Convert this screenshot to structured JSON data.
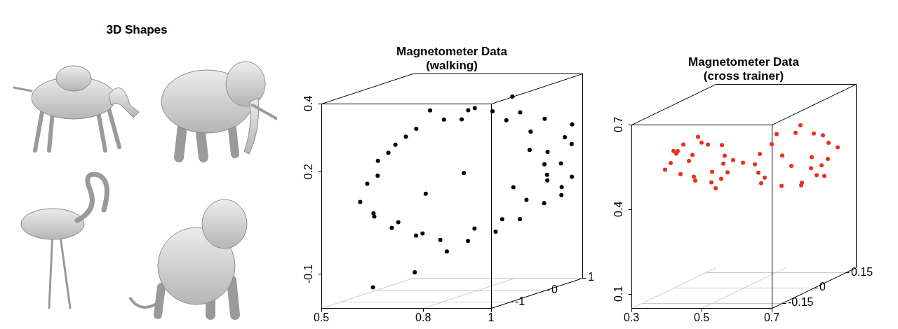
{
  "figure": {
    "panels": [
      {
        "title": "3D Shapes"
      }
    ]
  },
  "chart_data": [
    {
      "type": "scatter3d",
      "title": "Magnetometer Data (walking)",
      "color": "#000000",
      "xlim": [
        0.5,
        1
      ],
      "xticks": [
        0.5,
        0.8,
        1
      ],
      "ylim": [
        -1.5,
        1
      ],
      "yticks": [
        -1,
        0,
        1
      ],
      "zlim": [
        -0.2,
        0.4
      ],
      "zticks": [
        -0.1,
        0.2,
        0.4
      ],
      "grid": true,
      "x": [
        0.95,
        0.93,
        0.97,
        0.9,
        0.86,
        0.8,
        0.75,
        0.7,
        0.64,
        0.6,
        0.57,
        0.56,
        0.55,
        0.57,
        0.6,
        0.65,
        0.7,
        0.76,
        0.82,
        0.87,
        0.92,
        0.95,
        0.98,
        0.96,
        0.92,
        0.98,
        0.88,
        0.83,
        0.78,
        0.72,
        0.67,
        0.62,
        0.59,
        0.58,
        0.6,
        0.63,
        0.68,
        0.73,
        0.79,
        0.85,
        0.9,
        0.94,
        0.99,
        0.97,
        0.91,
        0.84,
        0.78,
        0.7,
        0.62,
        0.7,
        0.88
      ],
      "y": [
        0.5,
        0.7,
        0.8,
        0.9,
        0.6,
        0.4,
        0.2,
        0,
        -0.2,
        -0.4,
        -0.6,
        -0.8,
        -0.9,
        -0.7,
        -0.5,
        -0.3,
        -0.1,
        0.1,
        0.3,
        0.5,
        0.7,
        0.9,
        0.6,
        0.8,
        0.3,
        0.9,
        0.7,
        0.5,
        0.1,
        0.3,
        -0.1,
        -0.3,
        -0.5,
        -0.7,
        -1,
        -0.6,
        -0.4,
        -0.2,
        0,
        0.2,
        0.4,
        0.6,
        0.8,
        1,
        0.8,
        0.6,
        -0.2,
        -0.5,
        -1.2,
        -0.8,
        0.2
      ],
      "z": [
        0.12,
        0.18,
        0.22,
        0.27,
        0.3,
        0.31,
        0.32,
        0.3,
        0.28,
        0.24,
        0.2,
        0.14,
        0.09,
        0.04,
        0,
        -0.03,
        -0.05,
        -0.06,
        -0.04,
        -0.01,
        0.03,
        0.07,
        0.15,
        0.05,
        0.2,
        0.1,
        0.24,
        0.28,
        0.33,
        0.29,
        0.33,
        0.26,
        0.22,
        0.16,
        0.06,
        0.02,
        -0.02,
        -0.08,
        -0.02,
        0,
        0.05,
        0.1,
        0.2,
        0.25,
        0.14,
        0.08,
        0.15,
        0.1,
        -0.15,
        -0.12,
        0.36
      ]
    },
    {
      "type": "scatter3d",
      "title": "Magnetometer Data (cross trainer)",
      "color": "#e8321e",
      "xlim": [
        0.3,
        0.7
      ],
      "xticks": [
        0.3,
        0.5,
        0.7
      ],
      "ylim": [
        -0.2,
        0.2
      ],
      "yticks": [
        -0.15,
        0,
        0.15
      ],
      "zlim": [
        0.05,
        0.7
      ],
      "zticks": [
        0.1,
        0.4,
        0.7
      ],
      "grid": true,
      "x": [
        0.5,
        0.48,
        0.44,
        0.4,
        0.36,
        0.34,
        0.35,
        0.38,
        0.42,
        0.46,
        0.49,
        0.5,
        0.47,
        0.43,
        0.39,
        0.35,
        0.33,
        0.37,
        0.41,
        0.45,
        0.51,
        0.42,
        0.38,
        0.46,
        0.52,
        0.55,
        0.6,
        0.64,
        0.67,
        0.68,
        0.66,
        0.63,
        0.59,
        0.55,
        0.53,
        0.58,
        0.57,
        0.62,
        0.66,
        0.69,
        0.65,
        0.61,
        0.56,
        0.6,
        0.64,
        0.54,
        0.67,
        0.62
      ],
      "y": [
        -0.05,
        -0.07,
        -0.1,
        -0.12,
        -0.1,
        -0.08,
        -0.05,
        -0.03,
        -0.02,
        -0.04,
        -0.06,
        -0.09,
        -0.12,
        -0.1,
        -0.13,
        -0.07,
        -0.09,
        -0.02,
        0,
        -0.05,
        -0.02,
        -0.11,
        -0.06,
        -0.03,
        0.02,
        0.05,
        0.08,
        0.1,
        0.12,
        0.1,
        0.08,
        0.06,
        0.03,
        0,
        0.02,
        0.05,
        0.04,
        0.07,
        0.11,
        0.13,
        0.12,
        0.09,
        0,
        0.06,
        0.09,
        0.01,
        0.1,
        0.12
      ],
      "z": [
        0.52,
        0.58,
        0.6,
        0.6,
        0.57,
        0.52,
        0.47,
        0.44,
        0.43,
        0.45,
        0.48,
        0.55,
        0.6,
        0.62,
        0.58,
        0.55,
        0.5,
        0.45,
        0.46,
        0.42,
        0.5,
        0.56,
        0.52,
        0.5,
        0.48,
        0.54,
        0.57,
        0.56,
        0.52,
        0.47,
        0.42,
        0.4,
        0.4,
        0.42,
        0.45,
        0.5,
        0.58,
        0.6,
        0.55,
        0.5,
        0.44,
        0.38,
        0.44,
        0.46,
        0.48,
        0.52,
        0.41,
        0.43
      ]
    }
  ]
}
